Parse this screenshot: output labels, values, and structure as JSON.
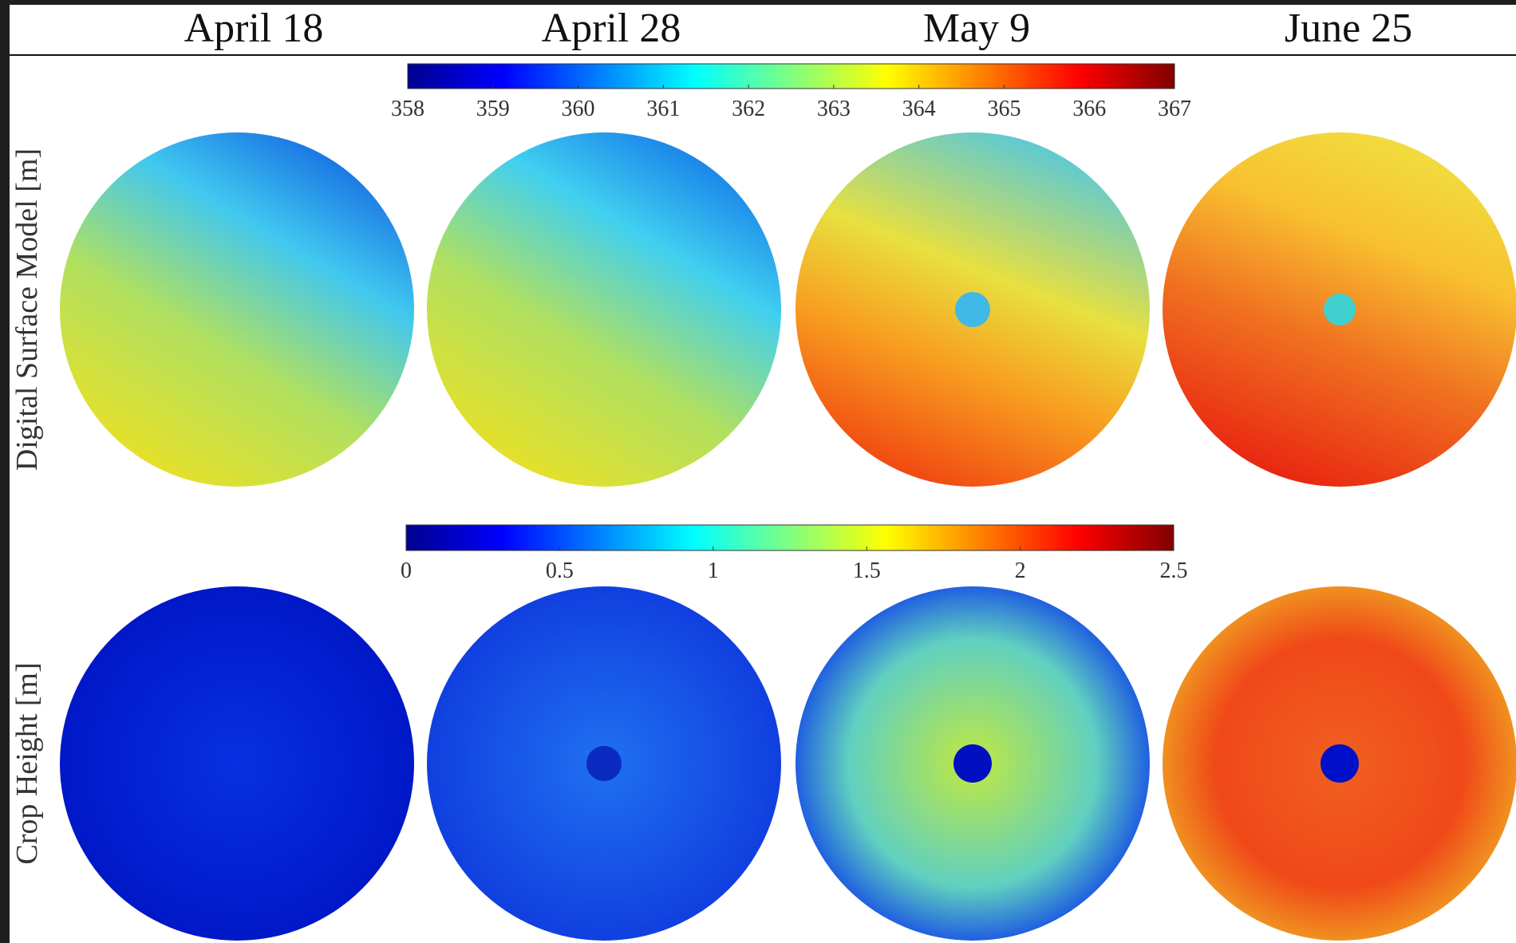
{
  "columns": [
    "April 18",
    "April 28",
    "May 9",
    "June 25"
  ],
  "chart_data": [
    {
      "type": "heatmap",
      "ylabel": "Digital Surface Model [m]",
      "colorbar": {
        "lim": [
          358,
          367
        ],
        "ticks": [
          358,
          359,
          360,
          361,
          362,
          363,
          364,
          365,
          366,
          367
        ]
      }
    },
    {
      "type": "heatmap",
      "ylabel": "Crop Height [m]",
      "colorbar": {
        "lim": [
          0,
          2.5
        ],
        "ticks": [
          0,
          0.5,
          1,
          1.5,
          2,
          2.5
        ]
      }
    }
  ]
}
